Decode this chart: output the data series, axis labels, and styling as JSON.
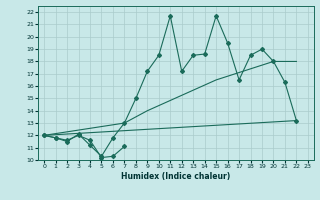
{
  "xlabel": "Humidex (Indice chaleur)",
  "ylabel": "",
  "bg_color": "#c8e8e8",
  "grid_color": "#aacccc",
  "line_color": "#1a6b5a",
  "xlim": [
    -0.5,
    23.5
  ],
  "ylim": [
    10,
    22.5
  ],
  "xticks": [
    0,
    1,
    2,
    3,
    4,
    5,
    6,
    7,
    8,
    9,
    10,
    11,
    12,
    13,
    14,
    15,
    16,
    17,
    18,
    19,
    20,
    21,
    22,
    23
  ],
  "yticks": [
    10,
    11,
    12,
    13,
    14,
    15,
    16,
    17,
    18,
    19,
    20,
    21,
    22
  ],
  "s0x": [
    0,
    1,
    2,
    3,
    4,
    5,
    6,
    7
  ],
  "s0y": [
    12,
    11.8,
    11.6,
    12.0,
    11.6,
    10.2,
    10.3,
    11.1
  ],
  "s1x": [
    0,
    1,
    2,
    3,
    4,
    5,
    6,
    7,
    8,
    9,
    10,
    11,
    12,
    13,
    14,
    15,
    16,
    17,
    18,
    19,
    20,
    21,
    22
  ],
  "s1y": [
    12,
    11.8,
    11.5,
    12.1,
    11.2,
    10.3,
    11.8,
    13.0,
    15.0,
    17.2,
    18.5,
    21.7,
    17.2,
    18.5,
    18.6,
    21.7,
    19.5,
    16.5,
    18.5,
    19.0,
    18.0,
    16.3,
    13.2
  ],
  "s2x": [
    0,
    22
  ],
  "s2y": [
    12.0,
    13.2
  ],
  "s3x": [
    0,
    7,
    9,
    15,
    20,
    22
  ],
  "s3y": [
    12,
    13.0,
    14.0,
    16.5,
    18.0,
    18.0
  ]
}
